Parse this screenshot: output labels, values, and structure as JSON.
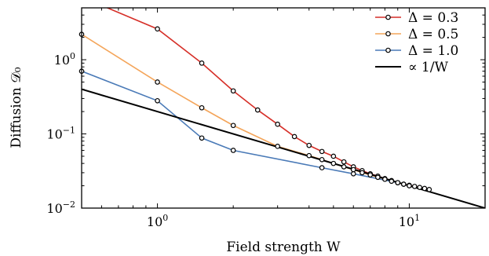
{
  "chart_data": {
    "type": "line",
    "xscale": "log",
    "yscale": "log",
    "xlim": [
      0.5,
      20
    ],
    "ylim": [
      0.01,
      5
    ],
    "xlabel": "Field strength W",
    "ylabel": "Diffusion 𝒟₀",
    "x_ticks": [
      {
        "value": 1,
        "label_base": "10",
        "label_exp": "0"
      },
      {
        "value": 10,
        "label_base": "10",
        "label_exp": "1"
      }
    ],
    "y_ticks": [
      {
        "value": 0.01,
        "label_base": "10",
        "label_exp": "−2"
      },
      {
        "value": 0.1,
        "label_base": "10",
        "label_exp": "−1"
      },
      {
        "value": 1,
        "label_base": "10",
        "label_exp": "0"
      }
    ],
    "legend_position": "top-right",
    "series": [
      {
        "name": "Δ = 0.3",
        "color": "#d62f28",
        "x": [
          0.5,
          1.0,
          1.5,
          2.0,
          2.5,
          3.0,
          3.5,
          4.0,
          4.5,
          5.0,
          5.5,
          6.0,
          6.5,
          7.0,
          7.5,
          8.0,
          8.5,
          9.0,
          9.5,
          10.0,
          10.5,
          11.0,
          11.5,
          12.0
        ],
        "y": [
          7.0,
          2.6,
          0.9,
          0.38,
          0.21,
          0.135,
          0.092,
          0.07,
          0.058,
          0.05,
          0.042,
          0.036,
          0.032,
          0.029,
          0.027,
          0.025,
          0.0235,
          0.022,
          0.021,
          0.0203,
          0.0196,
          0.019,
          0.0184,
          0.0178
        ]
      },
      {
        "name": "Δ = 0.5",
        "color": "#f4a55a",
        "x": [
          0.5,
          1.0,
          1.5,
          2.0,
          3.0,
          4.0,
          4.5,
          5.0,
          5.5,
          6.0,
          6.5,
          7.0,
          7.5,
          8.0,
          8.5,
          9.0,
          9.5,
          10.0
        ],
        "y": [
          2.2,
          0.5,
          0.225,
          0.13,
          0.068,
          0.051,
          0.045,
          0.04,
          0.036,
          0.033,
          0.03,
          0.028,
          0.026,
          0.0245,
          0.023,
          0.022,
          0.021,
          0.02
        ]
      },
      {
        "name": "Δ = 1.0",
        "color": "#4a7ab7",
        "x": [
          0.5,
          1.0,
          1.5,
          2.0,
          4.5,
          6.0,
          9.0
        ],
        "y": [
          0.7,
          0.28,
          0.088,
          0.06,
          0.035,
          0.029,
          0.022
        ]
      },
      {
        "name": "∝ 1/W",
        "color": "#000000",
        "x": [
          0.5,
          20
        ],
        "y": [
          0.4,
          0.01
        ],
        "markers": false
      }
    ]
  }
}
